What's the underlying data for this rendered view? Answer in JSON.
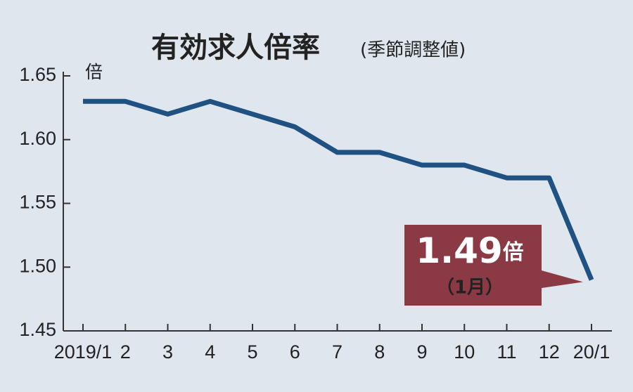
{
  "chart_data": {
    "type": "line",
    "title": "有効求人倍率",
    "subtitle": "(季節調整値)",
    "y_unit": "倍",
    "categories": [
      "2019/1",
      "2",
      "3",
      "4",
      "5",
      "6",
      "7",
      "8",
      "9",
      "10",
      "11",
      "12",
      "20/1"
    ],
    "series": [
      {
        "name": "有効求人倍率",
        "color": "#1f5282",
        "values": [
          1.63,
          1.63,
          1.62,
          1.63,
          1.62,
          1.61,
          1.59,
          1.59,
          1.58,
          1.58,
          1.57,
          1.57,
          1.49
        ],
        "value_labels": [
          null,
          null,
          null,
          null,
          null,
          null,
          null,
          null,
          null,
          null,
          null,
          null,
          "1.49"
        ]
      }
    ],
    "annotation": {
      "unit": "倍",
      "note": "（1月）",
      "color": "#8b3a45"
    },
    "ylim": [
      1.45,
      1.65
    ],
    "yticks": [
      1.65,
      {
        "value": 1.6,
        "label": "1.60"
      },
      1.55,
      {
        "value": 1.5,
        "label": "1.50"
      },
      1.45
    ]
  }
}
